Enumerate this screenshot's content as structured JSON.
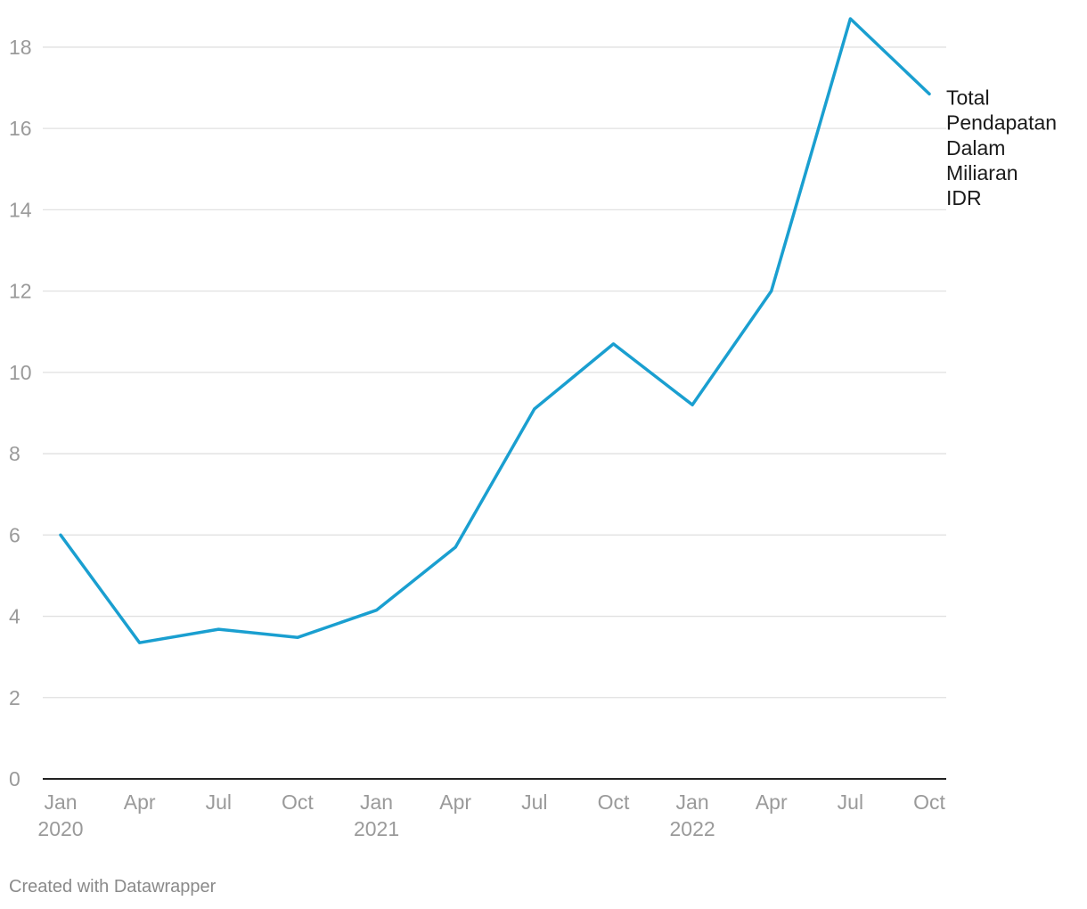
{
  "chart_data": {
    "type": "line",
    "x": [
      "Jan 2020",
      "Apr 2020",
      "Jul 2020",
      "Oct 2020",
      "Jan 2021",
      "Apr 2021",
      "Jul 2021",
      "Oct 2021",
      "Jan 2022",
      "Apr 2022",
      "Jul 2022",
      "Oct 2022"
    ],
    "x_tick_labels": [
      {
        "label": "Jan",
        "year": "2020"
      },
      {
        "label": "Apr",
        "year": ""
      },
      {
        "label": "Jul",
        "year": ""
      },
      {
        "label": "Oct",
        "year": ""
      },
      {
        "label": "Jan",
        "year": "2021"
      },
      {
        "label": "Apr",
        "year": ""
      },
      {
        "label": "Jul",
        "year": ""
      },
      {
        "label": "Oct",
        "year": ""
      },
      {
        "label": "Jan",
        "year": "2022"
      },
      {
        "label": "Apr",
        "year": ""
      },
      {
        "label": "Jul",
        "year": ""
      },
      {
        "label": "Oct",
        "year": ""
      }
    ],
    "series": [
      {
        "name": "Total Pendapatan Dalam Miliaran IDR",
        "label_lines": [
          "Total",
          "Pendapatan",
          "Dalam",
          "Miliaran",
          "IDR"
        ],
        "color": "#1a9fd0",
        "values": [
          6.0,
          3.35,
          3.68,
          3.48,
          4.15,
          5.7,
          9.1,
          10.7,
          9.2,
          12.0,
          18.7,
          16.85
        ]
      }
    ],
    "y_ticks": [
      0,
      2,
      4,
      6,
      8,
      10,
      12,
      14,
      16,
      18
    ],
    "ylim": [
      0,
      18.7
    ],
    "grid": true,
    "title": "",
    "xlabel": "",
    "ylabel": ""
  },
  "credit": "Created with Datawrapper",
  "colors": {
    "line": "#1a9fd0",
    "grid": "#e1e1e1",
    "axis": "#222222",
    "tick_text": "#9a9a9a",
    "label_text": "#1a1a1a"
  }
}
